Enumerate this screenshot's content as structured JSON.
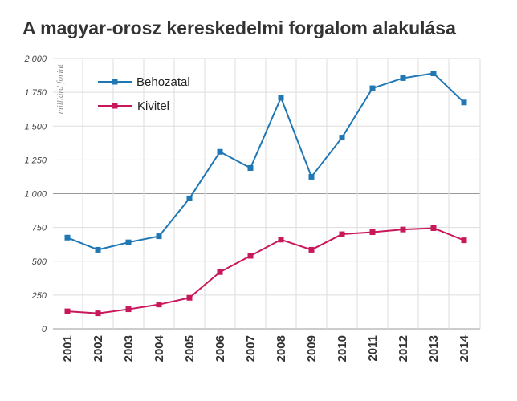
{
  "title": "A magyar-orosz kereskedelmi forgalom alakulása",
  "colors": {
    "import": "#1f77b4",
    "export": "#c8175a",
    "grid": "#dddddd",
    "baseline": "#999999"
  },
  "chart_data": {
    "type": "line",
    "title": "A magyar-orosz kereskedelmi forgalom alakulása",
    "ylabel": "milliárd forint",
    "xlabel": "",
    "ylim": [
      0,
      2000
    ],
    "yticks": [
      0,
      250,
      500,
      750,
      1000,
      1250,
      1500,
      1750,
      2000
    ],
    "ytick_labels": [
      "0",
      "250",
      "500",
      "750",
      "1 000",
      "1 250",
      "1 500",
      "1 750",
      "2 000"
    ],
    "grid": true,
    "legend_position": "top-left",
    "categories": [
      "2001",
      "2002",
      "2003",
      "2004",
      "2005",
      "2006",
      "2007",
      "2008",
      "2009",
      "2010",
      "2011",
      "2012",
      "2013",
      "2014"
    ],
    "series": [
      {
        "name": "Behozatal",
        "color": "#1f77b4",
        "values": [
          675,
          585,
          640,
          685,
          965,
          1310,
          1190,
          1710,
          1125,
          1415,
          1780,
          1855,
          1890,
          1675
        ]
      },
      {
        "name": "Kivitel",
        "color": "#c8175a",
        "values": [
          130,
          115,
          145,
          180,
          230,
          420,
          540,
          660,
          585,
          700,
          715,
          735,
          745,
          655
        ]
      }
    ]
  }
}
